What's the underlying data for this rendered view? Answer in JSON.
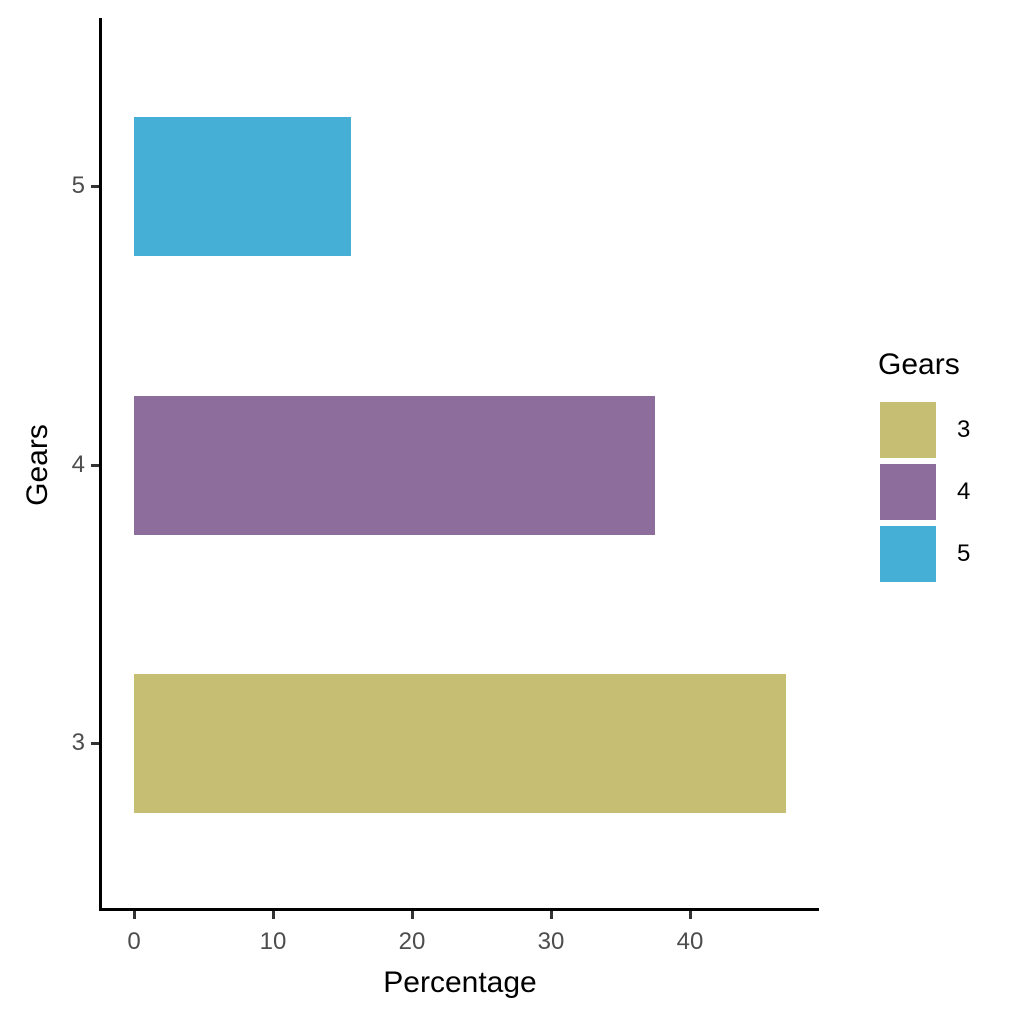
{
  "chart_data": {
    "type": "bar",
    "orientation": "horizontal",
    "title": "",
    "xlabel": "Percentage",
    "ylabel": "Gears",
    "categories": [
      "3",
      "4",
      "5"
    ],
    "values": [
      46.875,
      37.5,
      15.625
    ],
    "colors": [
      "#C6BE72",
      "#8C6D9C",
      "#45AFD6"
    ],
    "xlim": [
      0,
      49
    ],
    "xticks": [
      "0",
      "10",
      "20",
      "30",
      "40"
    ],
    "yticks": [
      "3",
      "4",
      "5"
    ],
    "grid": false,
    "legend": {
      "title": "Gears",
      "position": "right",
      "entries": [
        {
          "label": "3",
          "color": "#C6BE72"
        },
        {
          "label": "4",
          "color": "#8C6D9C"
        },
        {
          "label": "5",
          "color": "#45AFD6"
        }
      ]
    }
  }
}
